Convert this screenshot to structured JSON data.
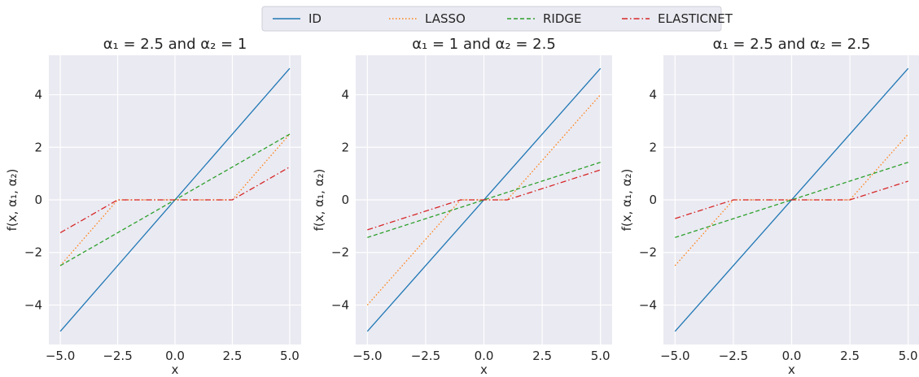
{
  "chart_data": {
    "type": "line",
    "legend": {
      "placement": "top-center",
      "entries": [
        "ID",
        "LASSO",
        "RIDGE",
        "ELASTICNET"
      ]
    },
    "styles": {
      "ID": {
        "color": "#1f77b4",
        "dash": "solid"
      },
      "LASSO": {
        "color": "#ff7f0e",
        "dash": "dotted"
      },
      "RIDGE": {
        "color": "#2ca02c",
        "dash": "dashed"
      },
      "ELASTICNET": {
        "color": "#d62728",
        "dash": "dashdot"
      }
    },
    "xlabel": "x",
    "ylabel": "f(x, α₁, α₂)",
    "xticks": [
      "-5.0",
      "-2.5",
      "0.0",
      "2.5",
      "5.0"
    ],
    "yticks": [
      "-4",
      "-2",
      "0",
      "2",
      "4"
    ],
    "xlim": [
      -5.5,
      5.5
    ],
    "ylim": [
      -5.5,
      5.5
    ],
    "grid": true,
    "subplots": [
      {
        "title": "α₁ = 2.5 and α₂ = 1",
        "series": [
          {
            "name": "ID",
            "points": [
              [
                -5,
                -5
              ],
              [
                5,
                5
              ]
            ]
          },
          {
            "name": "LASSO",
            "points": [
              [
                -5,
                -2.5
              ],
              [
                -2.5,
                0
              ],
              [
                2.5,
                0
              ],
              [
                5,
                2.5
              ]
            ]
          },
          {
            "name": "RIDGE",
            "points": [
              [
                -5,
                -2.5
              ],
              [
                5,
                2.5
              ]
            ]
          },
          {
            "name": "ELASTICNET",
            "points": [
              [
                -5,
                -1.25
              ],
              [
                -2.5,
                0
              ],
              [
                2.5,
                0
              ],
              [
                5,
                1.25
              ]
            ]
          }
        ]
      },
      {
        "title": "α₁ = 1 and α₂ = 2.5",
        "series": [
          {
            "name": "ID",
            "points": [
              [
                -5,
                -5
              ],
              [
                5,
                5
              ]
            ]
          },
          {
            "name": "LASSO",
            "points": [
              [
                -5,
                -4
              ],
              [
                -1,
                0
              ],
              [
                1,
                0
              ],
              [
                5,
                4
              ]
            ]
          },
          {
            "name": "RIDGE",
            "points": [
              [
                -5,
                -1.43
              ],
              [
                5,
                1.43
              ]
            ]
          },
          {
            "name": "ELASTICNET",
            "points": [
              [
                -5,
                -1.14
              ],
              [
                -1,
                0
              ],
              [
                1,
                0
              ],
              [
                5,
                1.14
              ]
            ]
          }
        ]
      },
      {
        "title": "α₁ = 2.5 and α₂ = 2.5",
        "series": [
          {
            "name": "ID",
            "points": [
              [
                -5,
                -5
              ],
              [
                5,
                5
              ]
            ]
          },
          {
            "name": "LASSO",
            "points": [
              [
                -5,
                -2.5
              ],
              [
                -2.5,
                0
              ],
              [
                2.5,
                0
              ],
              [
                5,
                2.5
              ]
            ]
          },
          {
            "name": "RIDGE",
            "points": [
              [
                -5,
                -1.43
              ],
              [
                5,
                1.43
              ]
            ]
          },
          {
            "name": "ELASTICNET",
            "points": [
              [
                -5,
                -0.71
              ],
              [
                -2.5,
                0
              ],
              [
                2.5,
                0
              ],
              [
                5,
                0.71
              ]
            ]
          }
        ]
      }
    ]
  }
}
